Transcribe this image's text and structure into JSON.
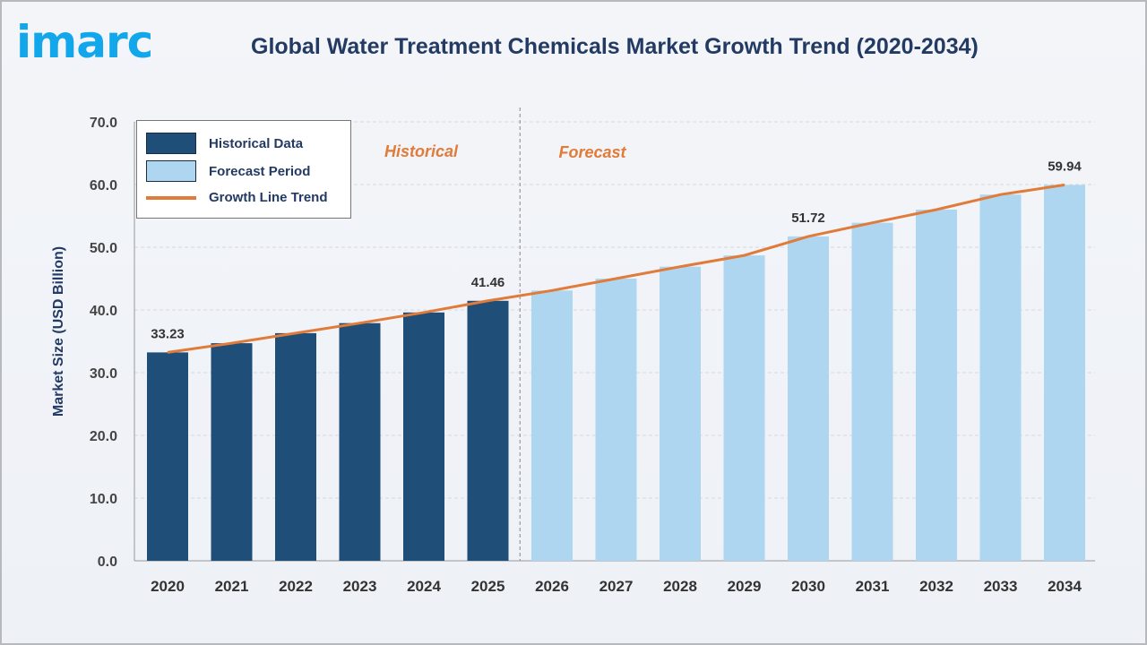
{
  "logo": "imarc",
  "colors": {
    "historical": "#1f4e79",
    "forecast": "#aed6f1",
    "line": "#e07b39",
    "title": "#233a63",
    "logo": "#12a7eb"
  },
  "chart_data": {
    "type": "bar",
    "title": "Global Water Treatment Chemicals Market Growth Trend (2020-2034)",
    "ylabel": "Market Size (USD Billion)",
    "xlabel": "",
    "ylim": [
      0,
      70
    ],
    "yticks": [
      "0.0",
      "10.0",
      "20.0",
      "30.0",
      "40.0",
      "50.0",
      "60.0",
      "70.0"
    ],
    "grid": true,
    "legend_placement": "top-left",
    "categories": [
      "2020",
      "2021",
      "2022",
      "2023",
      "2024",
      "2025",
      "2026",
      "2027",
      "2028",
      "2029",
      "2030",
      "2031",
      "2032",
      "2033",
      "2034"
    ],
    "values": [
      33.23,
      34.7,
      36.3,
      37.9,
      39.6,
      41.46,
      43.1,
      45.0,
      46.9,
      48.7,
      51.72,
      53.9,
      56.0,
      58.4,
      59.94
    ],
    "historical_count": 6,
    "data_labels": {
      "0": "33.23",
      "5": "41.46",
      "10": "51.72",
      "14": "59.94"
    },
    "section_labels": {
      "historical": "Historical",
      "forecast": "Forecast"
    },
    "legend": [
      "Historical Data",
      "Forecast Period",
      "Growth Line Trend"
    ]
  }
}
